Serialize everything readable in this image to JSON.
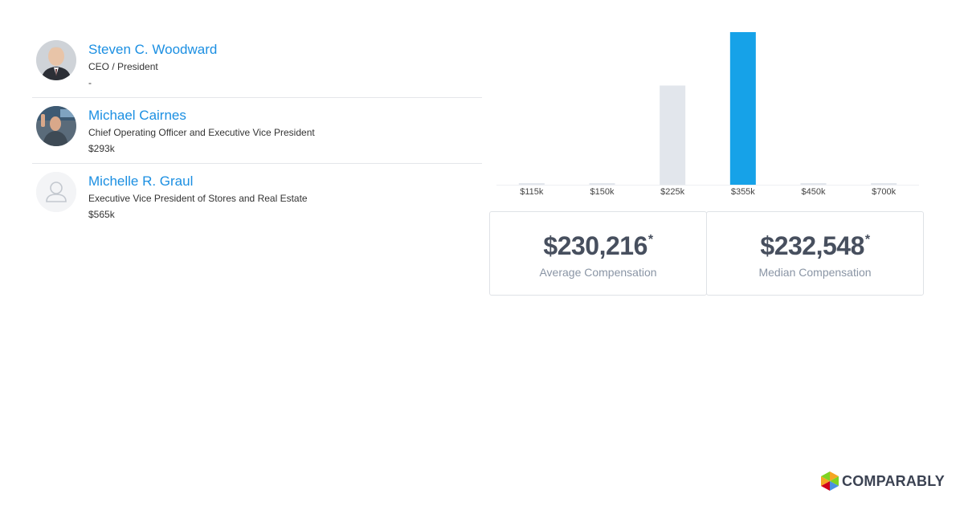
{
  "executives": [
    {
      "name": "Steven C. Woodward",
      "title": "CEO / President",
      "compensation": "-",
      "avatar": "photo"
    },
    {
      "name": "Michael Cairnes",
      "title": "Chief Operating Officer and Executive Vice President",
      "compensation": "$293k",
      "avatar": "photo"
    },
    {
      "name": "Michelle R. Graul",
      "title": "Executive Vice President of Stores and Real Estate",
      "compensation": "$565k",
      "avatar": "placeholder-person-icon"
    }
  ],
  "chart_data": {
    "type": "bar",
    "categories": [
      "$115k",
      "$150k",
      "$225k",
      "$355k",
      "$450k",
      "$700k"
    ],
    "values": [
      0,
      0,
      65,
      100,
      0,
      0
    ],
    "highlight_index": 3,
    "colors": {
      "default": "#e2e6ec",
      "highlight": "#16a2e8",
      "baseline": "#eef0f3"
    },
    "grid": false,
    "legend": "none",
    "ylim": [
      0,
      100
    ]
  },
  "stats": {
    "average": {
      "value": "$230,216",
      "asterisk": "*",
      "label": "Average Compensation"
    },
    "median": {
      "value": "$232,548",
      "asterisk": "*",
      "label": "Median Compensation"
    }
  },
  "brand": {
    "name": "COMPARABLY",
    "logo_colors": [
      "#f5a623",
      "#7ed321",
      "#4a90e2",
      "#d0021b"
    ]
  }
}
